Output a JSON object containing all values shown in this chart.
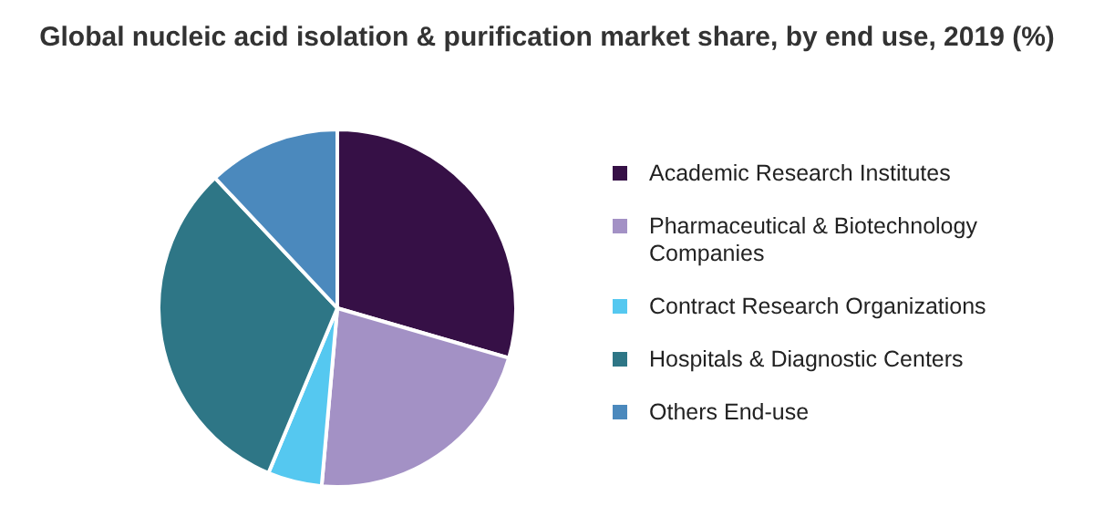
{
  "chart_data": {
    "type": "pie",
    "title": "Global nucleic acid isolation & purification market share, by end use, 2019 (%)",
    "categories": [
      "Academic Research Institutes",
      "Pharmaceutical & Biotechnology Companies",
      "Contract Research Organizations",
      "Hospitals & Diagnostic Centers",
      "Others End-use"
    ],
    "values": [
      29.5,
      21.9,
      4.9,
      31.7,
      12
    ],
    "colors": [
      "#361046",
      "#a391c5",
      "#55c8f0",
      "#2e7686",
      "#4b89bd"
    ],
    "legend": "right"
  }
}
